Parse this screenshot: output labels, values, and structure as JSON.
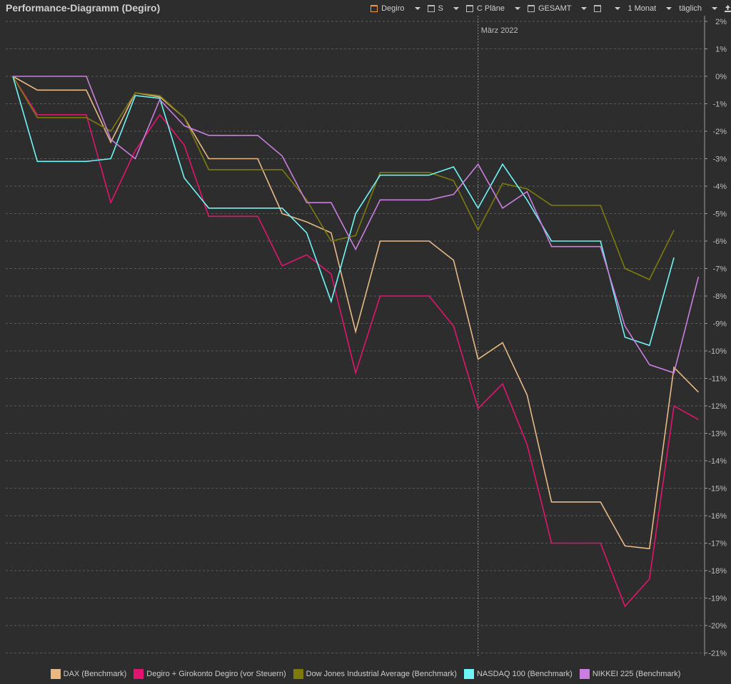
{
  "header": {
    "title": "Performance-Diagramm (Degiro)",
    "toolbar": [
      {
        "icon": "depot-icon",
        "label": "Degiro",
        "accent": true
      },
      {
        "icon": "window-icon",
        "label": "S",
        "accent": false
      },
      {
        "icon": "window-icon",
        "label": "C Pläne",
        "accent": false
      },
      {
        "icon": "window-icon",
        "label": "GESAMT",
        "accent": false
      },
      {
        "icon": "window-icon",
        "label": "",
        "accent": false
      },
      {
        "icon": "",
        "label": "1 Monat",
        "accent": false
      },
      {
        "icon": "",
        "label": "täglich",
        "accent": false
      }
    ]
  },
  "chart_data": {
    "type": "line",
    "ylim": [
      -21,
      2
    ],
    "y_tick_labels": [
      "2%",
      "1%",
      "0%",
      "-1%",
      "-2%",
      "-3%",
      "-4%",
      "-5%",
      "-6%",
      "-7%",
      "-8%",
      "-9%",
      "-10%",
      "-11%",
      "-12%",
      "-13%",
      "-14%",
      "-15%",
      "-16%",
      "-17%",
      "-18%",
      "-19%",
      "-20%",
      "-21%"
    ],
    "grid": true,
    "month_marker": {
      "label": "März 2022",
      "index": 19
    },
    "legend_position": "bottom",
    "series": [
      {
        "name": "DAX (Benchmark)",
        "color": "#e8b985",
        "values": [
          0,
          -0.5,
          -0.5,
          -0.5,
          -2.4,
          -0.6,
          -0.75,
          -1.5,
          -3,
          -3,
          -3,
          -5,
          -5.3,
          -5.7,
          -9.3,
          -6,
          -6,
          -6,
          -6.7,
          -10.3,
          -9.7,
          -11.6,
          -15.5,
          -15.5,
          -15.5,
          -17.1,
          -17.2,
          -10.6,
          -11.5
        ]
      },
      {
        "name": "Degiro + Girokonto Degiro (vor Steuern)",
        "color": "#e2156e",
        "values": [
          0,
          -1.4,
          -1.4,
          -1.4,
          -4.6,
          -2.7,
          -1.4,
          -2.5,
          -5.1,
          -5.1,
          -5.1,
          -6.9,
          -6.5,
          -7.2,
          -10.8,
          -8,
          -8,
          -8,
          -9.1,
          -12.1,
          -11.2,
          -13.4,
          -17,
          -17,
          -17,
          -19.3,
          -18.3,
          -12,
          -12.5
        ]
      },
      {
        "name": "Dow Jones Industrial Average (Benchmark)",
        "color": "#7d7a0c",
        "values": [
          0,
          -1.5,
          -1.5,
          -1.5,
          -2,
          -0.6,
          -0.7,
          -1.5,
          -3.4,
          -3.4,
          -3.4,
          -3.4,
          -4.5,
          -6,
          -5.8,
          -3.5,
          -3.5,
          -3.5,
          -3.8,
          -5.6,
          -3.9,
          -4.1,
          -4.7,
          -4.7,
          -4.7,
          -7,
          -7.4,
          -5.6
        ]
      },
      {
        "name": "NASDAQ 100 (Benchmark)",
        "color": "#6ef5f5",
        "values": [
          0,
          -3.1,
          -3.1,
          -3.1,
          -3,
          -0.7,
          -0.8,
          -3.7,
          -4.8,
          -4.8,
          -4.8,
          -4.8,
          -5.7,
          -8.2,
          -5,
          -3.6,
          -3.6,
          -3.6,
          -3.3,
          -4.8,
          -3.2,
          -4.5,
          -6,
          -6,
          -6,
          -9.5,
          -9.8,
          -6.6
        ]
      },
      {
        "name": "NIKKEI 225 (Benchmark)",
        "color": "#c97ee0",
        "values": [
          0,
          0,
          0,
          0,
          -2.3,
          -3,
          -0.85,
          -1.8,
          -2.15,
          -2.15,
          -2.15,
          -2.9,
          -4.6,
          -4.6,
          -6.3,
          -4.5,
          -4.5,
          -4.5,
          -4.3,
          -3.2,
          -4.8,
          -4.2,
          -6.2,
          -6.2,
          -6.2,
          -9.1,
          -10.5,
          -10.8,
          -7.3
        ]
      }
    ]
  }
}
